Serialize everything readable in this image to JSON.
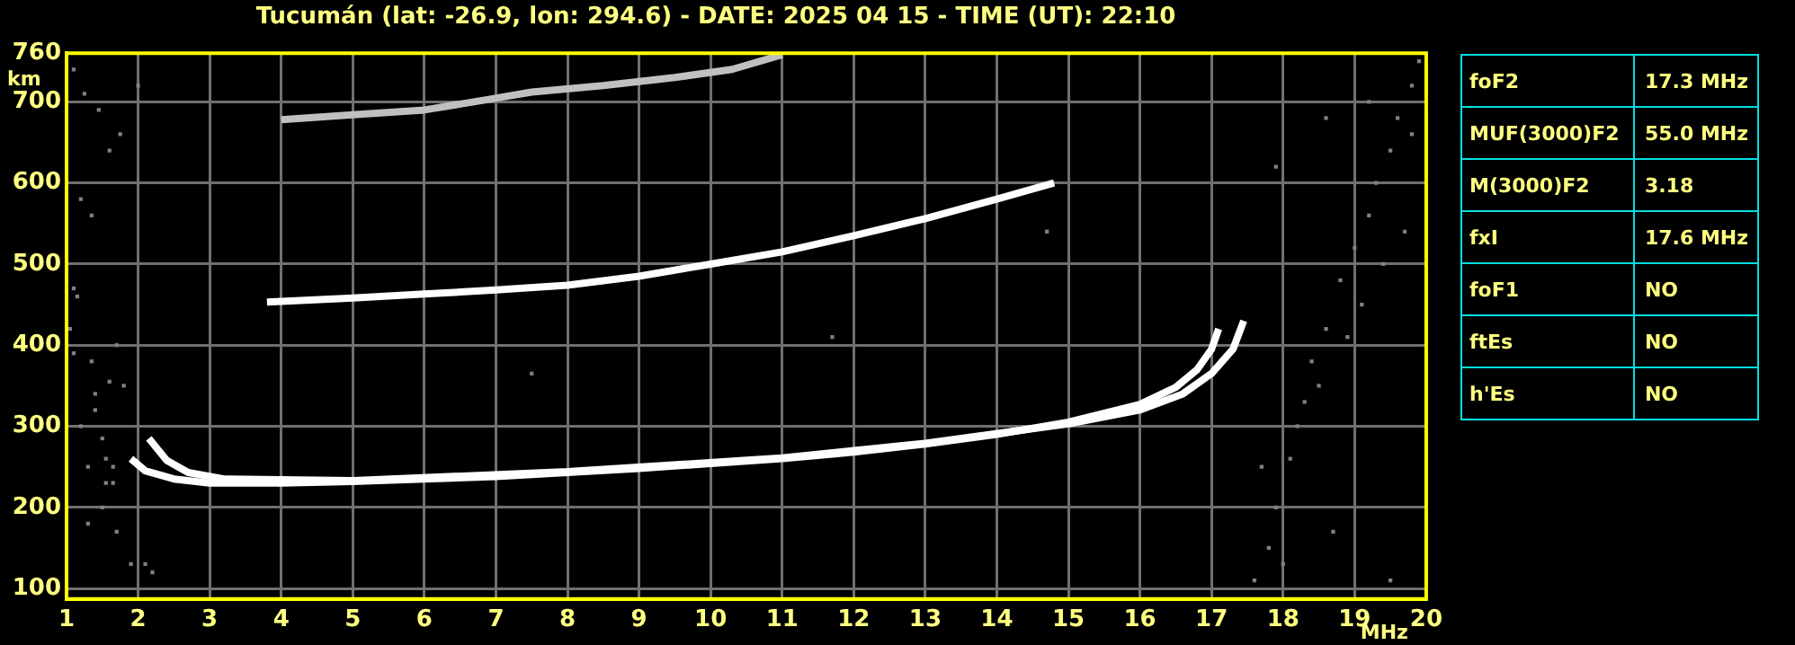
{
  "chart_data": {
    "type": "scatter",
    "title": "Tucumán (lat: -26.9, lon: 294.6) - DATE: 2025 04 15 - TIME (UT): 22:10",
    "xlabel": "MHz",
    "ylabel": "km",
    "xlim": [
      1,
      20
    ],
    "xticks": [
      1,
      2,
      3,
      4,
      5,
      6,
      7,
      8,
      9,
      10,
      11,
      12,
      13,
      14,
      15,
      16,
      17,
      18,
      19,
      20
    ],
    "ylim": [
      87,
      760
    ],
    "yticks": [
      100,
      200,
      300,
      400,
      500,
      600,
      700,
      760
    ],
    "grid": true,
    "legend": false,
    "annotations": [
      "foF2",
      "17.3 MHz",
      "MUF(3000)F2",
      "55.0 MHz",
      "M(3000)F2",
      "3.18",
      "fxI",
      "17.6 MHz",
      "foF1",
      "NO",
      "ftEs",
      "NO",
      "h'Es",
      "NO"
    ],
    "series": [
      {
        "type": "line",
        "marker": "none",
        "color": "#ffffff",
        "x": [
          1.9,
          2.1,
          2.5,
          3,
          4,
          5,
          6,
          7,
          8,
          9,
          10,
          11,
          12,
          13,
          14,
          15,
          16,
          16.5,
          16.8,
          17.0,
          17.1
        ],
        "values": [
          260,
          245,
          235,
          230,
          230,
          232,
          235,
          238,
          243,
          248,
          254,
          260,
          268,
          278,
          290,
          305,
          327,
          348,
          370,
          395,
          420
        ]
      },
      {
        "type": "line",
        "marker": "none",
        "color": "#ffffff",
        "x": [
          2.15,
          2.4,
          2.7,
          3.2,
          5,
          8,
          11,
          13,
          15,
          16,
          16.6,
          17.0,
          17.3,
          17.45
        ],
        "values": [
          285,
          258,
          243,
          235,
          233,
          244,
          261,
          279,
          303,
          320,
          340,
          365,
          395,
          430
        ]
      },
      {
        "type": "line",
        "marker": "none",
        "color": "#ffffff",
        "x": [
          3.8,
          5,
          6,
          7,
          8,
          9,
          10,
          11,
          12,
          13,
          14,
          14.8
        ],
        "values": [
          453,
          458,
          463,
          468,
          474,
          485,
          500,
          515,
          535,
          556,
          580,
          600
        ]
      },
      {
        "type": "line",
        "marker": "none",
        "color": "#c0c0c0",
        "x": [
          4,
          5,
          6,
          6.9,
          7.5,
          8.5,
          9.5,
          10.3,
          11
        ],
        "values": [
          678,
          684,
          690,
          703,
          712,
          720,
          730,
          740,
          758
        ]
      },
      {
        "type": "scatter",
        "marker": "square",
        "color": "#808080",
        "x": [
          1.05,
          1.1,
          1.2,
          1.3,
          1.35,
          1.4,
          1.5,
          1.55,
          1.6,
          1.65,
          1.7,
          1.8,
          1.9,
          1.1,
          1.25,
          1.45,
          1.6,
          1.75,
          2.1,
          2.2,
          1.3,
          1.5,
          1.7,
          1.2,
          1.4,
          1.55,
          1.35,
          1.65,
          1.1,
          1.15,
          17.6,
          17.8,
          17.9,
          18.1,
          18.3,
          18.4,
          18.6,
          18.8,
          19.0,
          19.2,
          19.3,
          19.5,
          19.6,
          19.8,
          19.9,
          17.7,
          18.2,
          18.5,
          18.9,
          19.1,
          19.4,
          19.7,
          17.9,
          18.6,
          19.2,
          19.8,
          18.0,
          18.7,
          19.5,
          7.5,
          2.0,
          14.7,
          11.7
        ],
        "values": [
          420,
          390,
          300,
          250,
          380,
          340,
          285,
          260,
          355,
          230,
          400,
          350,
          130,
          740,
          710,
          690,
          640,
          660,
          130,
          120,
          180,
          200,
          170,
          580,
          320,
          230,
          560,
          250,
          470,
          460,
          110,
          150,
          200,
          260,
          330,
          380,
          420,
          480,
          520,
          560,
          600,
          640,
          680,
          720,
          750,
          250,
          300,
          350,
          410,
          450,
          500,
          540,
          620,
          680,
          700,
          660,
          130,
          170,
          110,
          365,
          720,
          540,
          410
        ]
      }
    ]
  }
}
